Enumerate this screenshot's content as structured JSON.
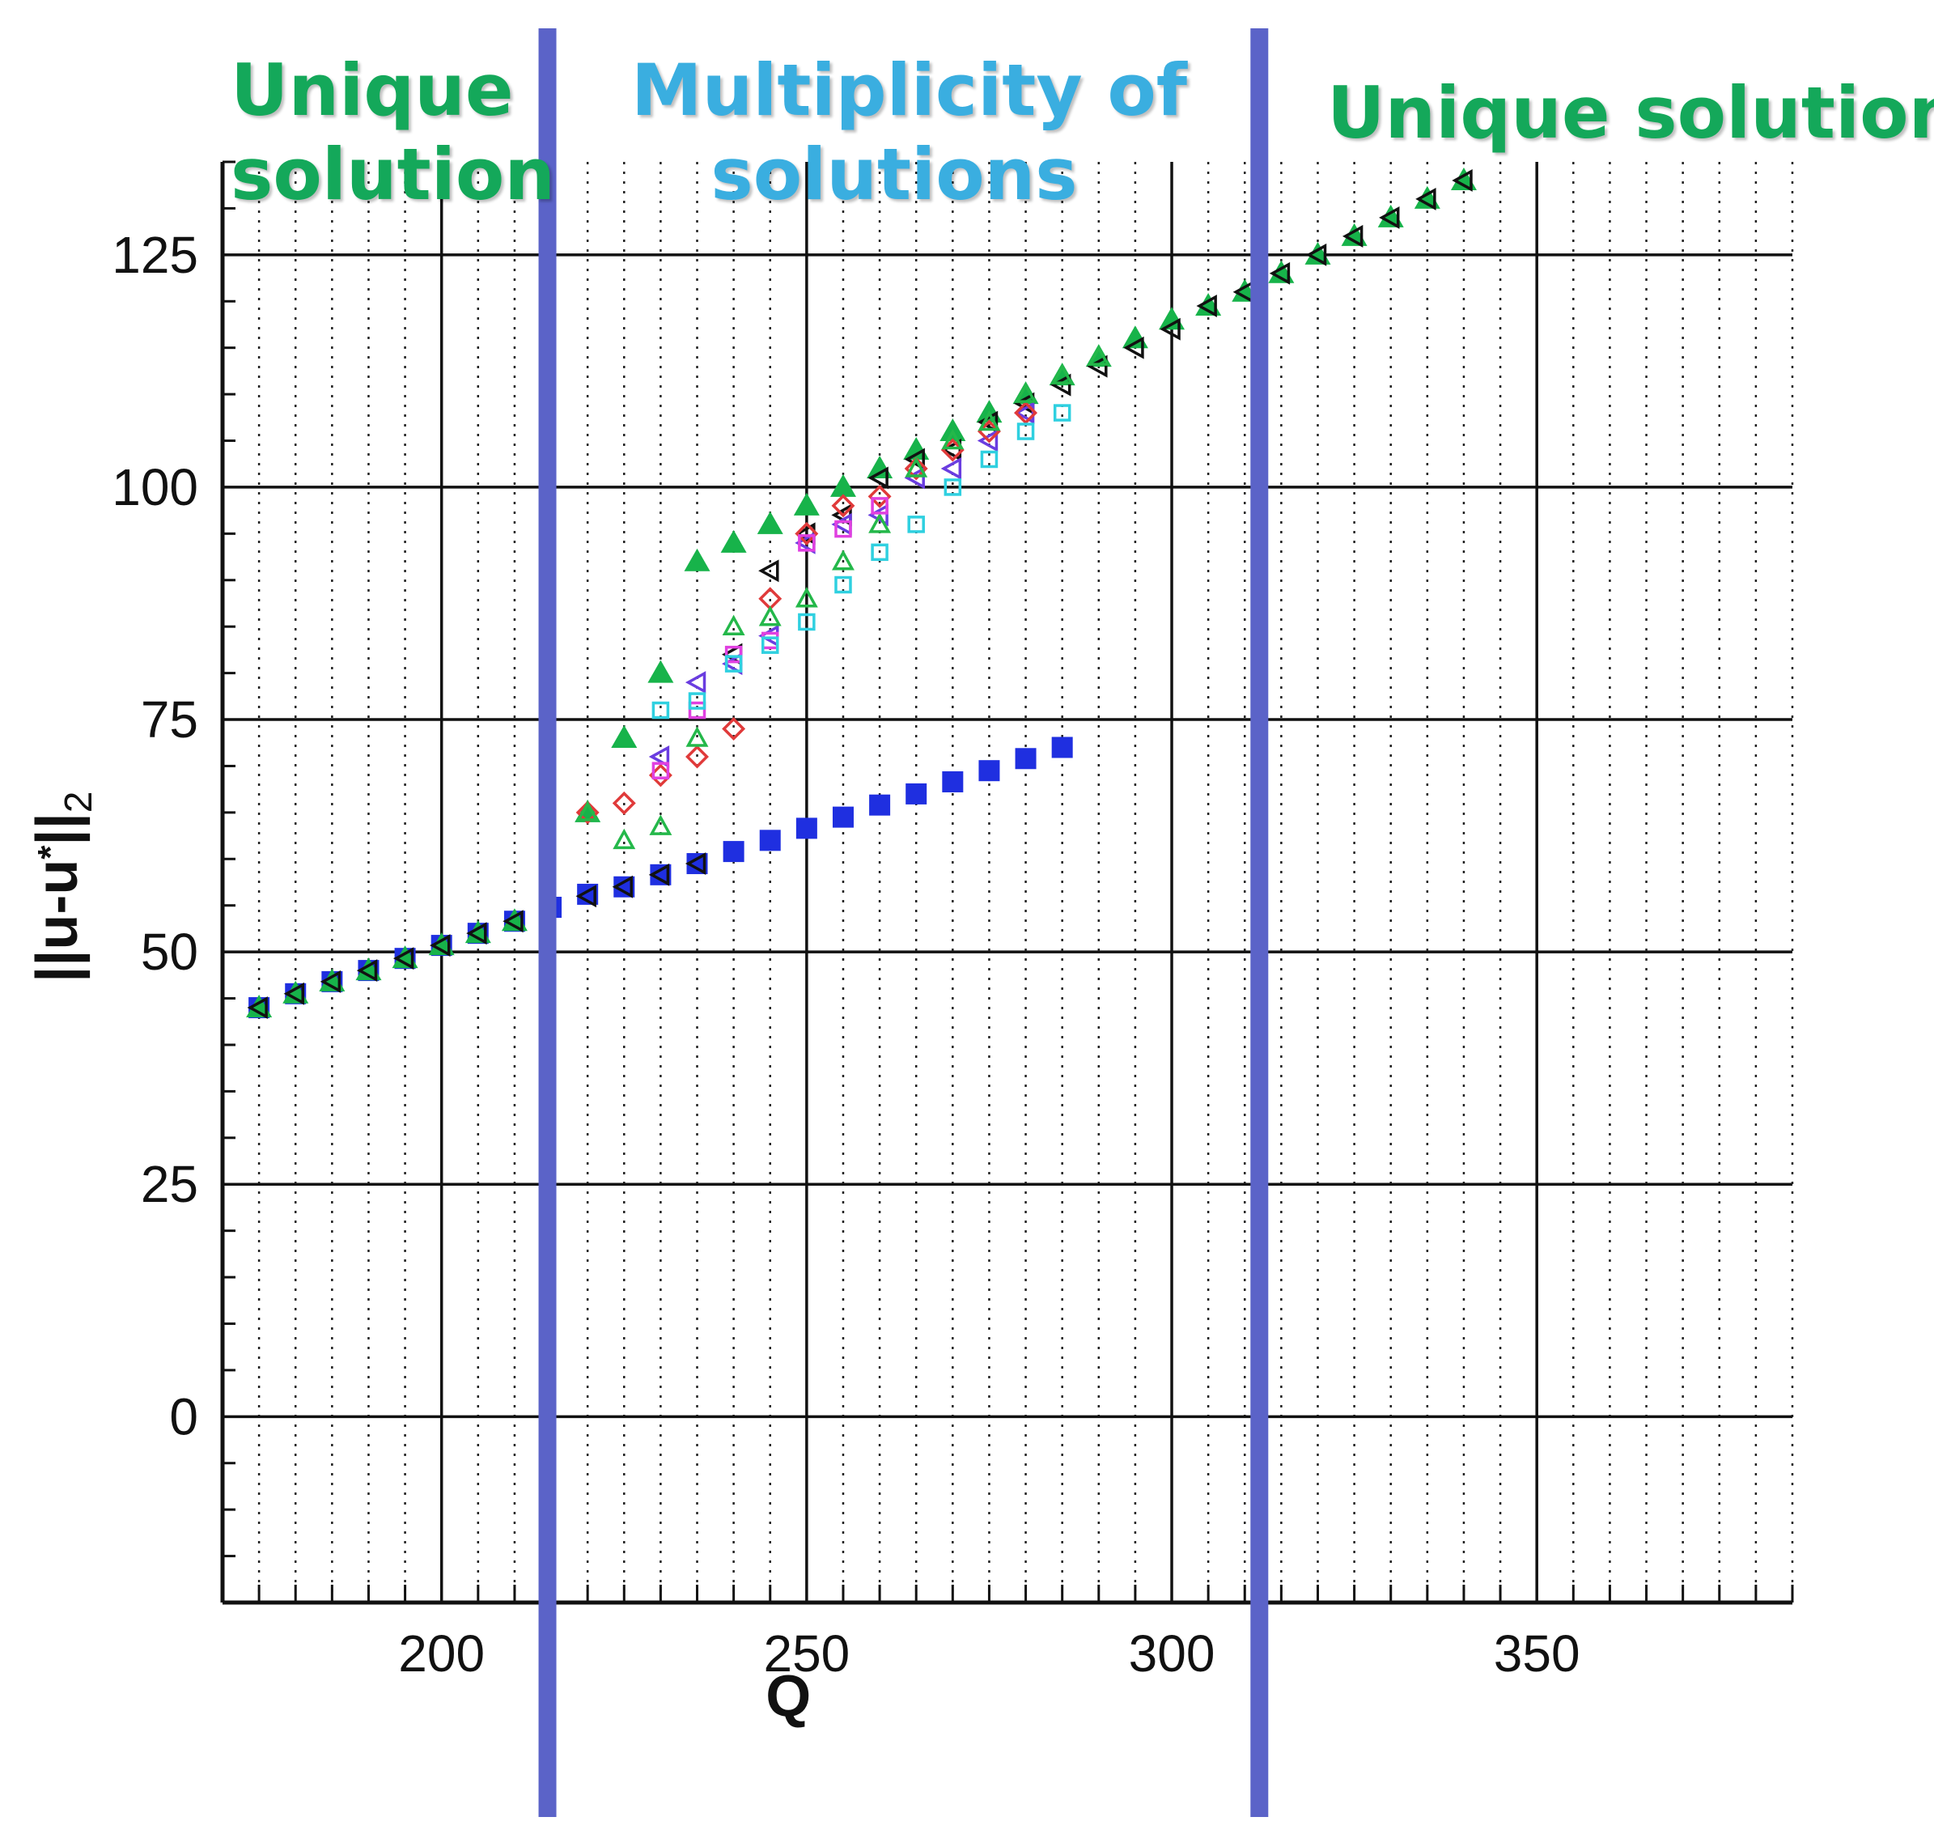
{
  "regions": {
    "left": {
      "line1": "Unique",
      "line2": "solution",
      "color": "#14a85a"
    },
    "middle": {
      "line1": "Multiplicity of",
      "line2": "solutions",
      "color": "#3aaee0"
    },
    "right": {
      "line1": "Unique solution",
      "color": "#14a85a"
    }
  },
  "divider_color": "#5b63c8",
  "chart_data": {
    "type": "scatter",
    "xlabel": "Q",
    "ylabel": "||u-u*||2",
    "ylabel_parts": {
      "main": "||u-u",
      "star": "*",
      "close": "||",
      "sub": "2"
    },
    "xlim": [
      170,
      385
    ],
    "ylim": [
      -20,
      135
    ],
    "x_major_ticks": [
      200,
      250,
      300,
      350
    ],
    "x_tick_labels": [
      "200",
      "250",
      "300",
      "350"
    ],
    "x_minor_step": 5,
    "y_major_ticks": [
      0,
      25,
      50,
      75,
      100,
      125
    ],
    "y_tick_labels": [
      "0",
      "25",
      "50",
      "75",
      "100",
      "125"
    ],
    "y_minor_step": 5,
    "grid": "major solid, minor dotted (x)",
    "dividers_x": [
      214.5,
      312
    ],
    "series": [
      {
        "marker": "filled-square",
        "color": "#1f2fe0",
        "x": [
          175,
          180,
          185,
          190,
          195,
          200,
          205,
          210,
          215,
          220,
          225,
          230,
          235,
          240,
          245,
          250,
          255,
          260,
          265,
          270,
          275,
          280,
          285
        ],
        "y": [
          44,
          45.5,
          46.8,
          48,
          49.3,
          50.7,
          52,
          53.3,
          54.8,
          56.2,
          57,
          58.3,
          59.5,
          60.8,
          62,
          63.3,
          64.5,
          65.8,
          67,
          68.3,
          69.5,
          70.8,
          72
        ]
      },
      {
        "marker": "filled-triangle",
        "color": "#17b34a",
        "x": [
          175,
          180,
          185,
          190,
          195,
          200,
          205,
          210,
          220,
          225,
          230,
          235,
          240,
          245,
          250,
          255,
          260,
          265,
          270,
          275,
          280,
          285,
          290,
          295,
          300,
          305,
          310,
          315,
          320,
          325,
          330,
          335,
          340
        ],
        "y": [
          44,
          45.5,
          46.8,
          48,
          49.3,
          50.7,
          52,
          53.3,
          65,
          73,
          80,
          92,
          94,
          96,
          98,
          100,
          102,
          104,
          106,
          108,
          110,
          112,
          114,
          116,
          118,
          119.5,
          121,
          123,
          125,
          127,
          129,
          131,
          133
        ]
      },
      {
        "marker": "open-triangle-left",
        "color": "#111111",
        "x": [
          175,
          180,
          185,
          190,
          195,
          200,
          205,
          210,
          220,
          225,
          230,
          235,
          240,
          245,
          250,
          255,
          260,
          265,
          270,
          275,
          280,
          285,
          290,
          295,
          300,
          305,
          310,
          315,
          320,
          325,
          330,
          335,
          340
        ],
        "y": [
          44,
          45.5,
          46.8,
          48,
          49.3,
          50.7,
          52,
          53.3,
          56,
          57,
          58.3,
          59.5,
          82,
          91,
          95,
          97,
          101,
          103,
          104,
          107,
          109,
          111,
          113,
          115,
          117,
          119.5,
          121,
          123,
          125,
          127,
          129,
          131,
          133
        ]
      },
      {
        "marker": "open-triangle-left",
        "color": "#6a3de0",
        "x": [
          230,
          235,
          240,
          245,
          250,
          255,
          260,
          265,
          270,
          275,
          280
        ],
        "y": [
          71,
          79,
          81,
          84,
          94,
          96,
          97,
          101,
          102,
          105,
          108
        ]
      },
      {
        "marker": "open-diamond",
        "color": "#e03a3a",
        "x": [
          220,
          225,
          230,
          235,
          240,
          245,
          250,
          255,
          260,
          265,
          270,
          275,
          280
        ],
        "y": [
          65,
          66,
          69,
          71,
          74,
          88,
          95,
          98,
          99,
          102,
          104,
          106,
          108
        ]
      },
      {
        "marker": "open-triangle",
        "color": "#24b84a",
        "x": [
          220,
          225,
          230,
          235,
          240,
          245,
          250,
          255,
          260,
          265,
          270,
          275,
          280,
          285,
          290
        ],
        "y": [
          65,
          62,
          63.5,
          73,
          85,
          86,
          88,
          92,
          96,
          102,
          105,
          107,
          110,
          112,
          114
        ]
      },
      {
        "marker": "open-square",
        "color": "#e040e0",
        "x": [
          230,
          235,
          240,
          245,
          250,
          255,
          260
        ],
        "y": [
          69.5,
          76,
          82,
          83.5,
          94,
          95.5,
          98
        ]
      },
      {
        "marker": "open-square",
        "color": "#2fd0e0",
        "x": [
          230,
          235,
          240,
          245,
          250,
          255,
          260,
          265,
          270,
          275,
          280,
          285
        ],
        "y": [
          76,
          77,
          81,
          83,
          85.5,
          89.5,
          93,
          96,
          100,
          103,
          106,
          108
        ]
      }
    ]
  }
}
